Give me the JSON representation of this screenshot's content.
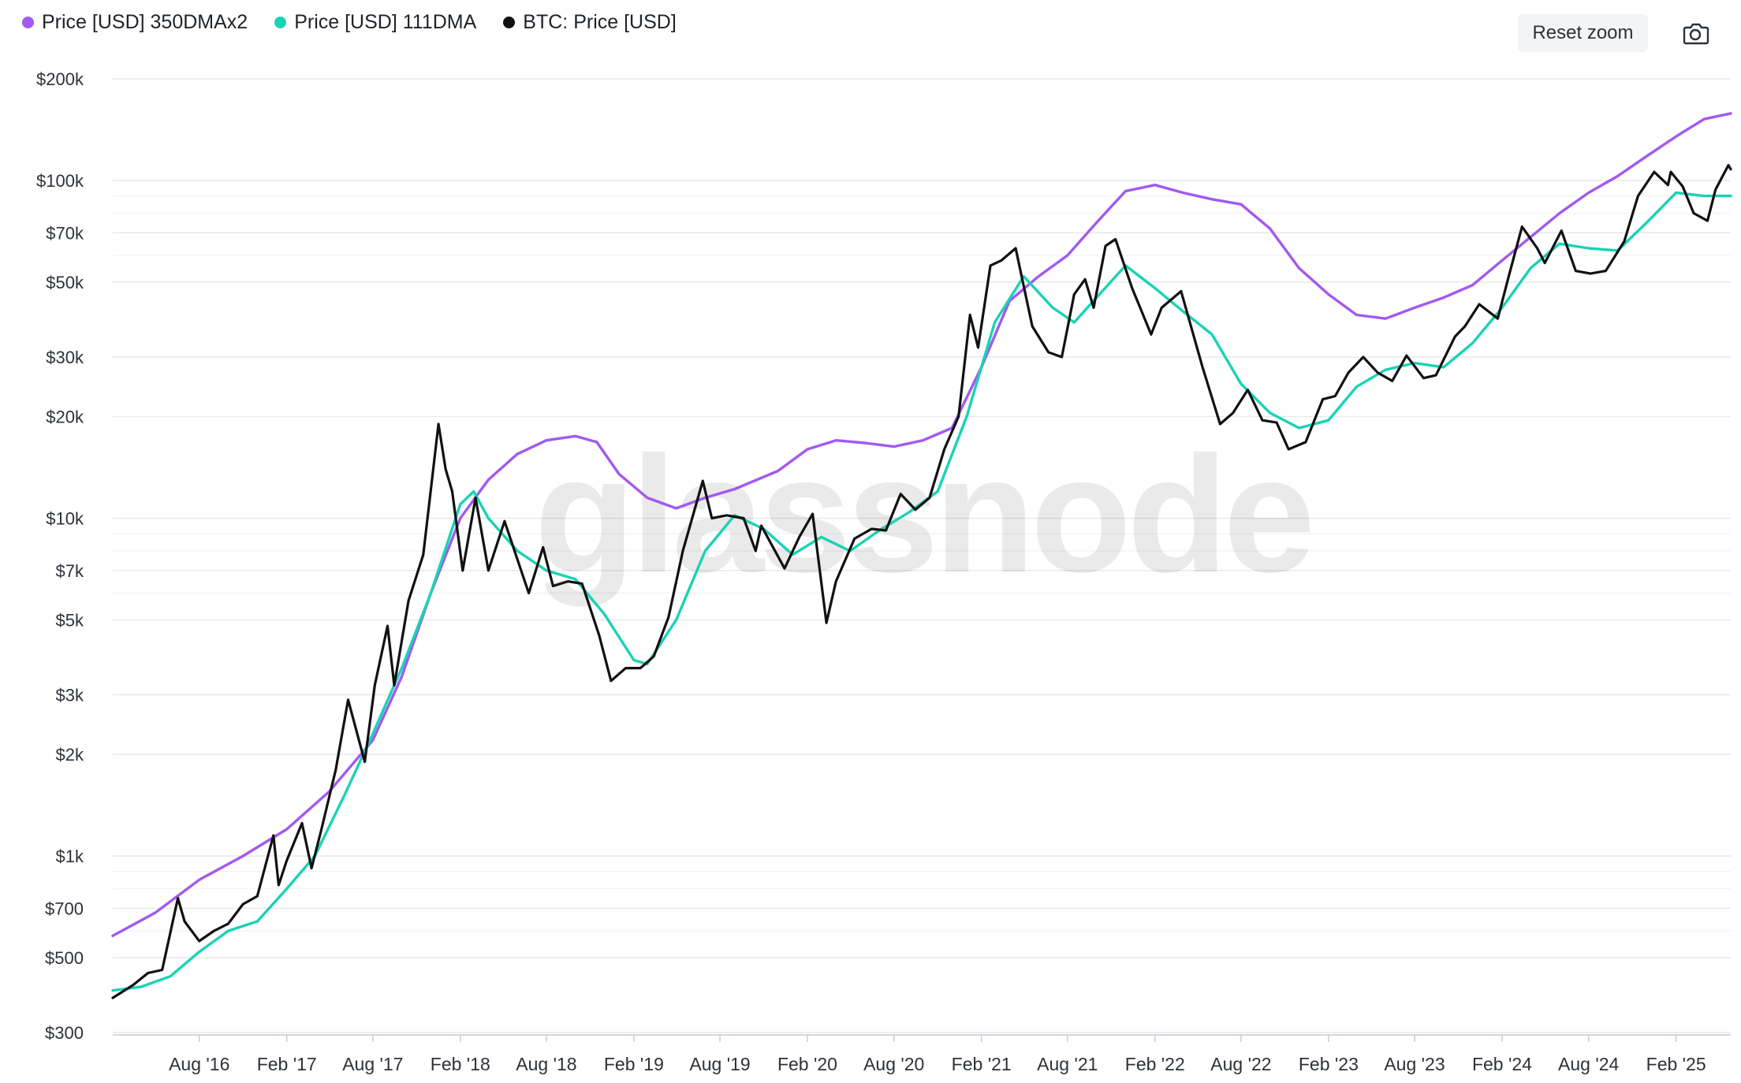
{
  "legend": [
    {
      "label": "Price [USD] 350DMAx2",
      "color": "#a259f1"
    },
    {
      "label": "Price [USD] 111DMA",
      "color": "#19d3b5"
    },
    {
      "label": "BTC: Price [USD]",
      "color": "#111111"
    }
  ],
  "toolbar": {
    "reset_zoom_label": "Reset zoom",
    "camera_icon": "camera-icon"
  },
  "watermark": "glassnode",
  "chart_data": {
    "type": "line",
    "y_scale": "log",
    "ylim": [
      300,
      200000
    ],
    "grid": true,
    "legend_position": "top-left",
    "y_ticks": [
      {
        "value": 200000,
        "label": "$200k"
      },
      {
        "value": 100000,
        "label": "$100k"
      },
      {
        "value": 70000,
        "label": "$70k"
      },
      {
        "value": 50000,
        "label": "$50k"
      },
      {
        "value": 30000,
        "label": "$30k"
      },
      {
        "value": 20000,
        "label": "$20k"
      },
      {
        "value": 10000,
        "label": "$10k"
      },
      {
        "value": 7000,
        "label": "$7k"
      },
      {
        "value": 5000,
        "label": "$5k"
      },
      {
        "value": 3000,
        "label": "$3k"
      },
      {
        "value": 2000,
        "label": "$2k"
      },
      {
        "value": 1000,
        "label": "$1k"
      },
      {
        "value": 700,
        "label": "$700"
      },
      {
        "value": 500,
        "label": "$500"
      },
      {
        "value": 300,
        "label": "$300"
      }
    ],
    "minor_grid_values": [
      90000,
      80000,
      60000,
      9000,
      8000,
      6000,
      900,
      800,
      600
    ],
    "x_range": [
      "2016-02-01",
      "2025-05-27"
    ],
    "x_ticks": [
      {
        "date": "2016-08-01",
        "label": "Aug '16"
      },
      {
        "date": "2017-02-01",
        "label": "Feb '17"
      },
      {
        "date": "2017-08-01",
        "label": "Aug '17"
      },
      {
        "date": "2018-02-01",
        "label": "Feb '18"
      },
      {
        "date": "2018-08-01",
        "label": "Aug '18"
      },
      {
        "date": "2019-02-01",
        "label": "Feb '19"
      },
      {
        "date": "2019-08-01",
        "label": "Aug '19"
      },
      {
        "date": "2020-02-01",
        "label": "Feb '20"
      },
      {
        "date": "2020-08-01",
        "label": "Aug '20"
      },
      {
        "date": "2021-02-01",
        "label": "Feb '21"
      },
      {
        "date": "2021-08-01",
        "label": "Aug '21"
      },
      {
        "date": "2022-02-01",
        "label": "Feb '22"
      },
      {
        "date": "2022-08-01",
        "label": "Aug '22"
      },
      {
        "date": "2023-02-01",
        "label": "Feb '23"
      },
      {
        "date": "2023-08-01",
        "label": "Aug '23"
      },
      {
        "date": "2024-02-01",
        "label": "Feb '24"
      },
      {
        "date": "2024-08-01",
        "label": "Aug '24"
      },
      {
        "date": "2025-02-01",
        "label": "Feb '25"
      }
    ],
    "series": [
      {
        "name": "Price [USD] 350DMAx2",
        "color": "#a259f1",
        "points": [
          [
            "2016-02-01",
            580
          ],
          [
            "2016-05-01",
            680
          ],
          [
            "2016-08-01",
            850
          ],
          [
            "2016-11-01",
            1000
          ],
          [
            "2017-02-01",
            1200
          ],
          [
            "2017-05-01",
            1550
          ],
          [
            "2017-08-01",
            2200
          ],
          [
            "2017-10-01",
            3400
          ],
          [
            "2017-12-01",
            6000
          ],
          [
            "2018-02-01",
            10000
          ],
          [
            "2018-04-01",
            13000
          ],
          [
            "2018-06-01",
            15500
          ],
          [
            "2018-08-01",
            17000
          ],
          [
            "2018-10-01",
            17500
          ],
          [
            "2018-11-15",
            16800
          ],
          [
            "2019-01-01",
            13500
          ],
          [
            "2019-03-01",
            11500
          ],
          [
            "2019-05-01",
            10700
          ],
          [
            "2019-07-01",
            11500
          ],
          [
            "2019-09-01",
            12200
          ],
          [
            "2019-12-01",
            13800
          ],
          [
            "2020-02-01",
            16000
          ],
          [
            "2020-04-01",
            17000
          ],
          [
            "2020-06-01",
            16700
          ],
          [
            "2020-08-01",
            16300
          ],
          [
            "2020-10-01",
            17000
          ],
          [
            "2020-12-01",
            18500
          ],
          [
            "2021-02-01",
            28000
          ],
          [
            "2021-04-01",
            44000
          ],
          [
            "2021-06-01",
            52000
          ],
          [
            "2021-08-01",
            60000
          ],
          [
            "2021-10-01",
            75000
          ],
          [
            "2021-12-01",
            93000
          ],
          [
            "2022-02-01",
            97000
          ],
          [
            "2022-04-01",
            92000
          ],
          [
            "2022-06-01",
            88000
          ],
          [
            "2022-08-01",
            85000
          ],
          [
            "2022-10-01",
            72000
          ],
          [
            "2022-12-01",
            55000
          ],
          [
            "2023-02-01",
            46000
          ],
          [
            "2023-04-01",
            40000
          ],
          [
            "2023-06-01",
            39000
          ],
          [
            "2023-08-01",
            42000
          ],
          [
            "2023-10-01",
            45000
          ],
          [
            "2023-12-01",
            49000
          ],
          [
            "2024-02-01",
            58000
          ],
          [
            "2024-04-01",
            68000
          ],
          [
            "2024-06-01",
            80000
          ],
          [
            "2024-08-01",
            92000
          ],
          [
            "2024-10-01",
            103000
          ],
          [
            "2024-12-01",
            118000
          ],
          [
            "2025-02-01",
            135000
          ],
          [
            "2025-04-01",
            152000
          ],
          [
            "2025-05-27",
            158000
          ]
        ]
      },
      {
        "name": "Price [USD] 111DMA",
        "color": "#19d3b5",
        "points": [
          [
            "2016-02-01",
            400
          ],
          [
            "2016-04-01",
            410
          ],
          [
            "2016-06-01",
            440
          ],
          [
            "2016-08-01",
            520
          ],
          [
            "2016-10-01",
            600
          ],
          [
            "2016-12-01",
            640
          ],
          [
            "2017-02-01",
            800
          ],
          [
            "2017-04-01",
            1000
          ],
          [
            "2017-06-01",
            1500
          ],
          [
            "2017-08-01",
            2300
          ],
          [
            "2017-10-01",
            3600
          ],
          [
            "2017-12-01",
            6000
          ],
          [
            "2018-02-01",
            11000
          ],
          [
            "2018-03-01",
            12000
          ],
          [
            "2018-04-01",
            10000
          ],
          [
            "2018-06-01",
            8000
          ],
          [
            "2018-08-01",
            7000
          ],
          [
            "2018-10-01",
            6600
          ],
          [
            "2018-12-01",
            5200
          ],
          [
            "2019-02-01",
            3800
          ],
          [
            "2019-03-01",
            3700
          ],
          [
            "2019-05-01",
            5000
          ],
          [
            "2019-07-01",
            8000
          ],
          [
            "2019-09-01",
            10200
          ],
          [
            "2019-11-01",
            9300
          ],
          [
            "2020-01-01",
            7800
          ],
          [
            "2020-03-01",
            8800
          ],
          [
            "2020-05-01",
            8000
          ],
          [
            "2020-07-01",
            9200
          ],
          [
            "2020-09-01",
            10400
          ],
          [
            "2020-11-01",
            12000
          ],
          [
            "2021-01-01",
            20000
          ],
          [
            "2021-03-01",
            38000
          ],
          [
            "2021-05-01",
            52000
          ],
          [
            "2021-07-01",
            42000
          ],
          [
            "2021-08-15",
            38000
          ],
          [
            "2021-10-01",
            45000
          ],
          [
            "2021-12-01",
            56000
          ],
          [
            "2022-02-01",
            48000
          ],
          [
            "2022-04-01",
            41000
          ],
          [
            "2022-06-01",
            35000
          ],
          [
            "2022-08-01",
            25000
          ],
          [
            "2022-10-01",
            20500
          ],
          [
            "2022-12-01",
            18500
          ],
          [
            "2023-02-01",
            19500
          ],
          [
            "2023-04-01",
            24500
          ],
          [
            "2023-06-01",
            27500
          ],
          [
            "2023-08-01",
            28800
          ],
          [
            "2023-10-01",
            28000
          ],
          [
            "2023-12-01",
            33000
          ],
          [
            "2024-02-01",
            42000
          ],
          [
            "2024-04-01",
            55000
          ],
          [
            "2024-06-01",
            65000
          ],
          [
            "2024-08-01",
            63000
          ],
          [
            "2024-10-01",
            62000
          ],
          [
            "2024-12-01",
            75000
          ],
          [
            "2025-02-01",
            92000
          ],
          [
            "2025-04-01",
            90000
          ],
          [
            "2025-05-27",
            90000
          ]
        ]
      },
      {
        "name": "BTC: Price [USD]",
        "color": "#111111",
        "points": [
          [
            "2016-02-01",
            380
          ],
          [
            "2016-03-15",
            415
          ],
          [
            "2016-04-15",
            450
          ],
          [
            "2016-05-15",
            460
          ],
          [
            "2016-06-17",
            750
          ],
          [
            "2016-07-01",
            640
          ],
          [
            "2016-08-01",
            560
          ],
          [
            "2016-09-01",
            600
          ],
          [
            "2016-10-01",
            630
          ],
          [
            "2016-11-01",
            720
          ],
          [
            "2016-12-01",
            760
          ],
          [
            "2017-01-04",
            1150
          ],
          [
            "2017-01-15",
            820
          ],
          [
            "2017-02-01",
            970
          ],
          [
            "2017-03-05",
            1250
          ],
          [
            "2017-03-25",
            920
          ],
          [
            "2017-04-15",
            1200
          ],
          [
            "2017-05-15",
            1800
          ],
          [
            "2017-06-10",
            2900
          ],
          [
            "2017-07-15",
            1900
          ],
          [
            "2017-08-05",
            3200
          ],
          [
            "2017-09-01",
            4800
          ],
          [
            "2017-09-15",
            3200
          ],
          [
            "2017-10-15",
            5700
          ],
          [
            "2017-11-15",
            7800
          ],
          [
            "2017-12-17",
            19000
          ],
          [
            "2018-01-01",
            14000
          ],
          [
            "2018-01-15",
            12000
          ],
          [
            "2018-02-06",
            7000
          ],
          [
            "2018-03-05",
            11500
          ],
          [
            "2018-04-01",
            7000
          ],
          [
            "2018-05-05",
            9800
          ],
          [
            "2018-06-25",
            6000
          ],
          [
            "2018-07-25",
            8200
          ],
          [
            "2018-08-15",
            6300
          ],
          [
            "2018-09-15",
            6500
          ],
          [
            "2018-10-15",
            6400
          ],
          [
            "2018-11-20",
            4500
          ],
          [
            "2018-12-15",
            3300
          ],
          [
            "2019-01-15",
            3600
          ],
          [
            "2019-02-15",
            3600
          ],
          [
            "2019-03-15",
            3900
          ],
          [
            "2019-04-15",
            5100
          ],
          [
            "2019-05-15",
            8000
          ],
          [
            "2019-06-26",
            12900
          ],
          [
            "2019-07-15",
            10000
          ],
          [
            "2019-08-15",
            10200
          ],
          [
            "2019-09-20",
            10000
          ],
          [
            "2019-10-15",
            8000
          ],
          [
            "2019-10-27",
            9500
          ],
          [
            "2019-12-15",
            7100
          ],
          [
            "2020-01-15",
            8800
          ],
          [
            "2020-02-12",
            10300
          ],
          [
            "2020-03-12",
            4900
          ],
          [
            "2020-04-01",
            6500
          ],
          [
            "2020-05-10",
            8700
          ],
          [
            "2020-06-15",
            9300
          ],
          [
            "2020-07-15",
            9200
          ],
          [
            "2020-08-15",
            11800
          ],
          [
            "2020-09-15",
            10600
          ],
          [
            "2020-10-15",
            11500
          ],
          [
            "2020-11-15",
            16000
          ],
          [
            "2020-12-15",
            20000
          ],
          [
            "2021-01-08",
            40000
          ],
          [
            "2021-01-25",
            32000
          ],
          [
            "2021-02-20",
            56000
          ],
          [
            "2021-03-15",
            58000
          ],
          [
            "2021-04-14",
            63000
          ],
          [
            "2021-05-19",
            37000
          ],
          [
            "2021-06-22",
            31000
          ],
          [
            "2021-07-20",
            30000
          ],
          [
            "2021-08-15",
            46000
          ],
          [
            "2021-09-07",
            51000
          ],
          [
            "2021-09-25",
            42000
          ],
          [
            "2021-10-20",
            64000
          ],
          [
            "2021-11-10",
            67000
          ],
          [
            "2021-12-15",
            48000
          ],
          [
            "2022-01-24",
            35000
          ],
          [
            "2022-02-15",
            42000
          ],
          [
            "2022-03-28",
            47000
          ],
          [
            "2022-05-12",
            28000
          ],
          [
            "2022-06-18",
            19000
          ],
          [
            "2022-07-15",
            20500
          ],
          [
            "2022-08-15",
            24000
          ],
          [
            "2022-09-15",
            19500
          ],
          [
            "2022-10-15",
            19200
          ],
          [
            "2022-11-09",
            16000
          ],
          [
            "2022-12-15",
            16800
          ],
          [
            "2023-01-20",
            22500
          ],
          [
            "2023-02-15",
            23000
          ],
          [
            "2023-03-15",
            27000
          ],
          [
            "2023-04-15",
            30000
          ],
          [
            "2023-05-15",
            27000
          ],
          [
            "2023-06-15",
            25500
          ],
          [
            "2023-07-15",
            30300
          ],
          [
            "2023-08-20",
            26000
          ],
          [
            "2023-09-15",
            26500
          ],
          [
            "2023-10-25",
            34500
          ],
          [
            "2023-11-15",
            37000
          ],
          [
            "2023-12-15",
            43000
          ],
          [
            "2024-01-23",
            39000
          ],
          [
            "2024-02-15",
            52000
          ],
          [
            "2024-03-14",
            73000
          ],
          [
            "2024-04-15",
            63000
          ],
          [
            "2024-05-01",
            57000
          ],
          [
            "2024-06-05",
            71000
          ],
          [
            "2024-07-05",
            54000
          ],
          [
            "2024-08-05",
            53000
          ],
          [
            "2024-09-06",
            54000
          ],
          [
            "2024-10-15",
            66000
          ],
          [
            "2024-11-13",
            90000
          ],
          [
            "2024-12-17",
            106000
          ],
          [
            "2025-01-15",
            97000
          ],
          [
            "2025-01-21",
            106000
          ],
          [
            "2025-02-15",
            96000
          ],
          [
            "2025-03-10",
            80000
          ],
          [
            "2025-04-08",
            76000
          ],
          [
            "2025-04-25",
            94000
          ],
          [
            "2025-05-22",
            111000
          ],
          [
            "2025-05-27",
            108000
          ]
        ]
      }
    ]
  }
}
